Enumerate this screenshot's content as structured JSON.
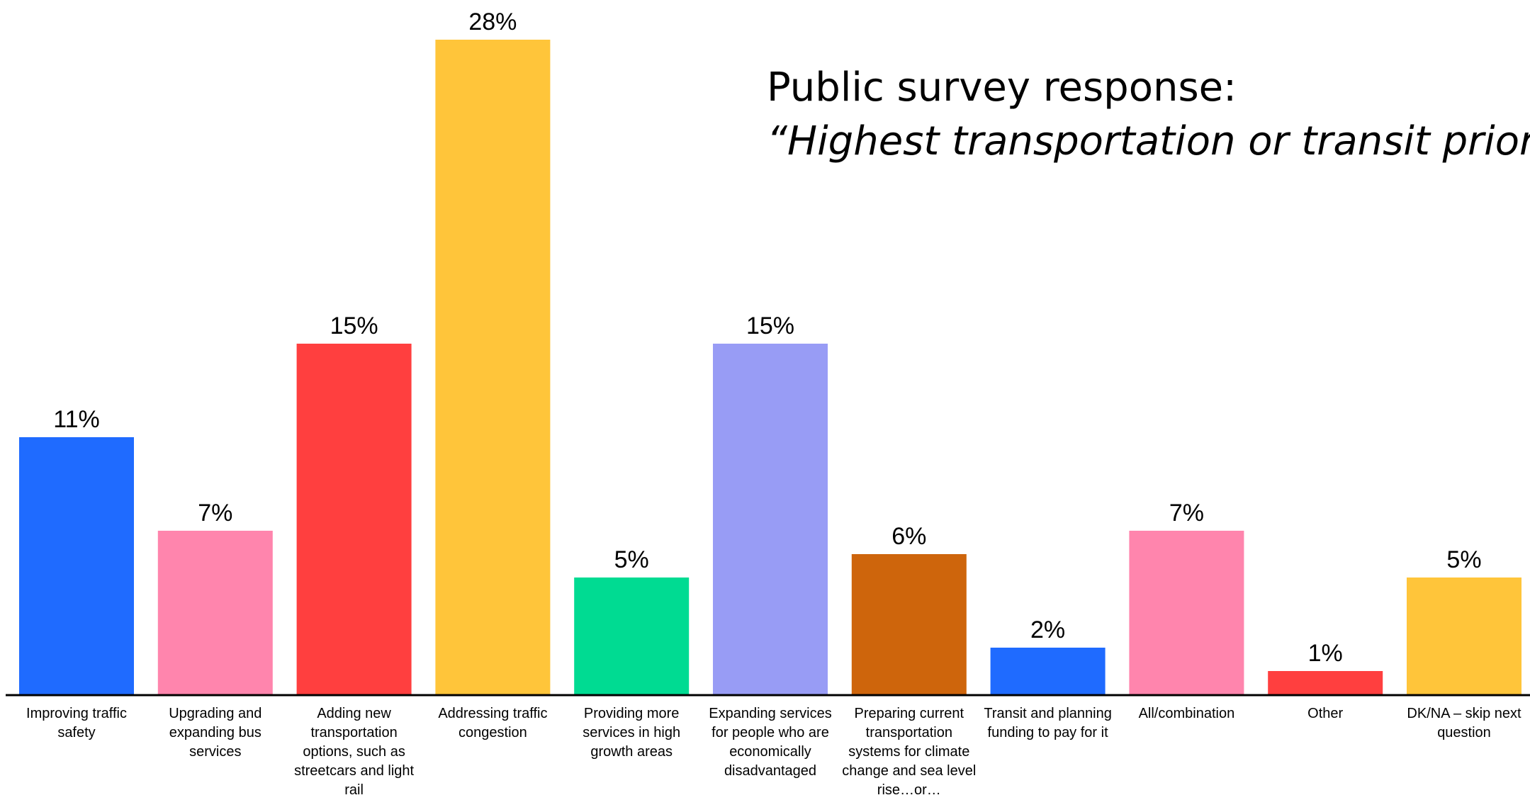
{
  "chart_data": {
    "type": "bar",
    "title": "Public survey response:",
    "subtitle": "“Highest transportation or transit priority",
    "categories": [
      "Improving traffic safety",
      "Upgrading and expanding bus services",
      "Adding new transportation options, such as streetcars and light rail",
      "Addressing traffic congestion",
      "Providing more services in high growth areas",
      "Expanding services for people who are economically disadvantaged",
      "Preparing current transportation systems for climate change and sea level rise…or…",
      "Transit and planning funding to pay for it",
      "All/combination",
      "Other",
      "DK/NA – skip next question"
    ],
    "values": [
      11,
      7,
      15,
      28,
      5,
      15,
      6,
      2,
      7,
      1,
      5
    ],
    "data_labels": [
      "11%",
      "7%",
      "15%",
      "28%",
      "5%",
      "15%",
      "6%",
      "2%",
      "7%",
      "1%",
      "5%"
    ],
    "colors": [
      "#1F6BFF",
      "#FF85AD",
      "#FF3F3F",
      "#FFC53A",
      "#00DB92",
      "#989CF5",
      "#CE650C",
      "#1F6BFF",
      "#FF85AD",
      "#FF3F3F",
      "#FFC53A"
    ],
    "unit": "%",
    "ylim": [
      0,
      28
    ],
    "grid": false,
    "legend": "none"
  }
}
